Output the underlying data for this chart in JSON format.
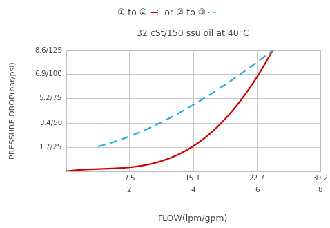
{
  "title_line2": "32 cSt/150 ssu oil at 40°C",
  "xlabel": "FLOW(lpm/gpm)",
  "ylabel": "PRESSURE DROP(bar/psi)",
  "ytick_labels": [
    "1.7/25",
    "3.4/50",
    "5.2/75",
    "6.9/100",
    "8.6/125"
  ],
  "ytick_values": [
    1.7,
    3.4,
    5.2,
    6.9,
    8.6
  ],
  "xtick_labels_top": [
    "7.5",
    "15.1",
    "22.7",
    "30.2"
  ],
  "xtick_labels_bottom": [
    "2",
    "4",
    "6",
    "8"
  ],
  "xtick_values": [
    7.5,
    15.1,
    22.7,
    30.2
  ],
  "xmin": 0.0,
  "xmax": 30.2,
  "ymin": 0.0,
  "ymax": 8.6,
  "red_color": "#cc0000",
  "blue_color": "#29abe2",
  "bg_color": "#ffffff",
  "grid_color": "#bbbbbb",
  "text_color": "#444444"
}
